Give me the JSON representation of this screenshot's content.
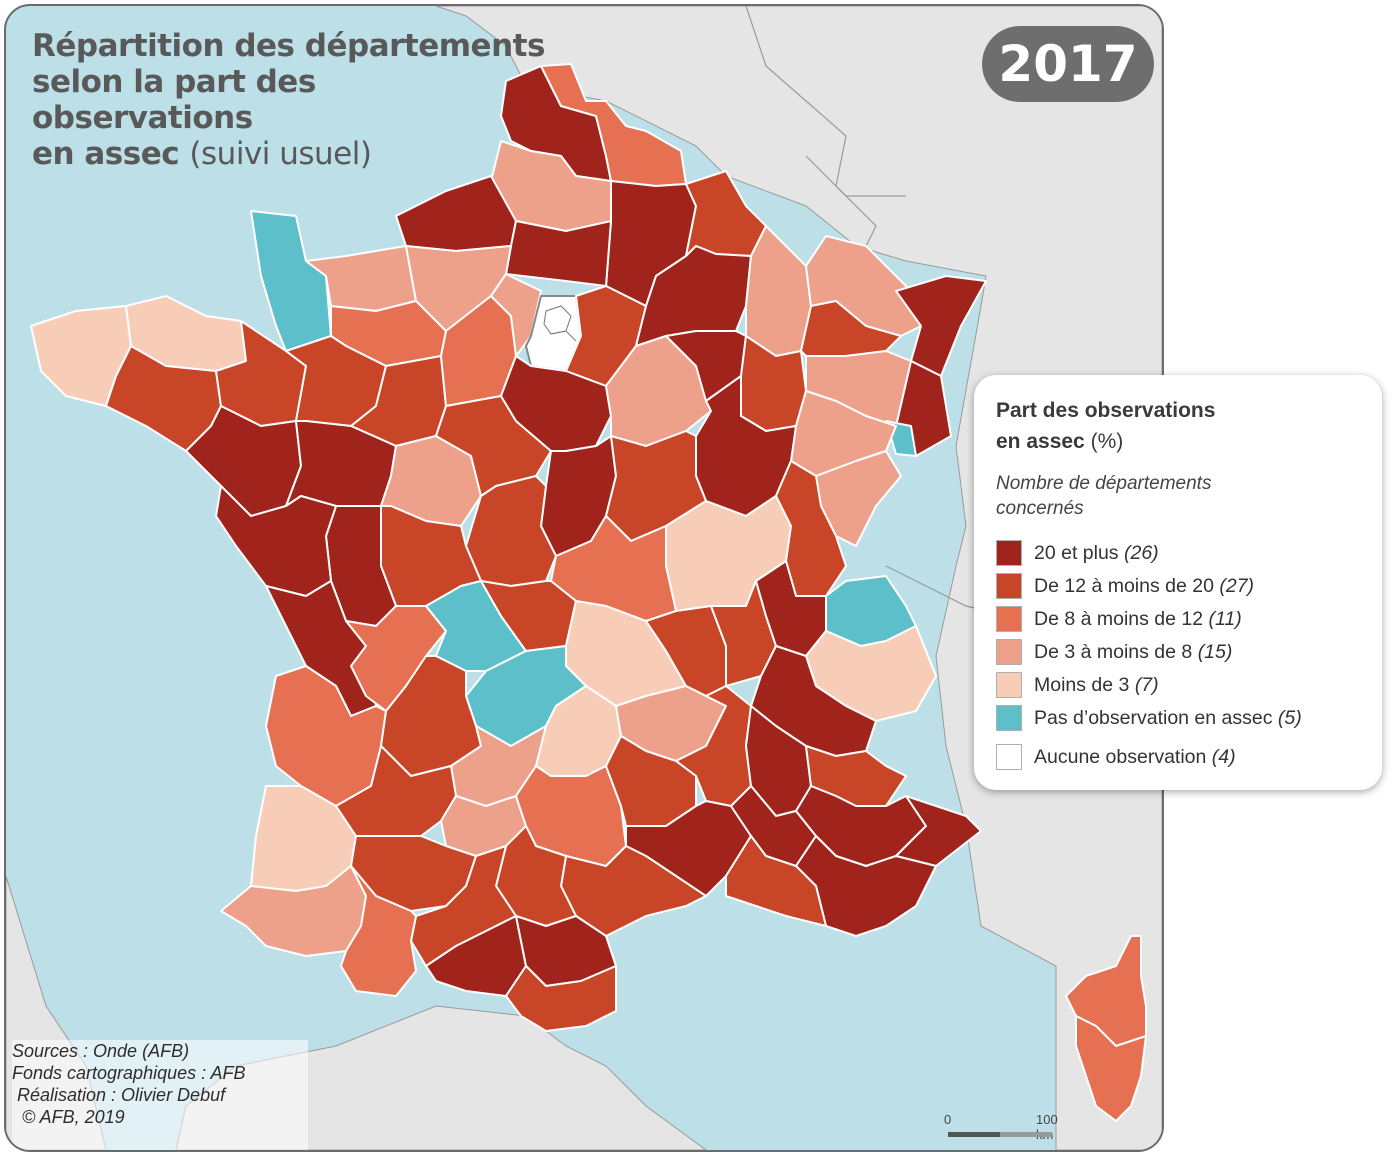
{
  "title": {
    "line1": "Répartition des départements",
    "line2": "selon la part des",
    "line3": "observations",
    "line4_bold": "en assec",
    "line4_light": "(suivi usuel)"
  },
  "year": "2017",
  "legend": {
    "title_bold": "Part des observations",
    "title_bold2": "en assec",
    "title_unit": "(%)",
    "subtitle": "Nombre de départements concernés",
    "classes": [
      {
        "label": "20 et plus",
        "count": "(26)",
        "color": "#a0241b"
      },
      {
        "label": "De 12 à moins de 20",
        "count": "(27)",
        "color": "#c84527"
      },
      {
        "label": "De 8 à moins de 12",
        "count": "(11)",
        "color": "#e57052"
      },
      {
        "label": "De 3 à moins de 8",
        "count": "(15)",
        "color": "#eda08a"
      },
      {
        "label": "Moins de 3",
        "count": "(7)",
        "color": "#f8cdb8"
      },
      {
        "label": "Pas d’observation en assec",
        "count": "(5)",
        "color": "#5cbfca"
      },
      {
        "label": "Aucune observation",
        "count": "(4)",
        "color": "#ffffff"
      }
    ]
  },
  "credits": {
    "sources": "Sources : Onde (AFB)",
    "fonds": "Fonds cartographiques : AFB",
    "realisation": " Réalisation : Olivier Debuf",
    "copyright": "  © AFB, 2019"
  },
  "scale": {
    "start": "0",
    "end": "100 km"
  },
  "colors": {
    "sea": "#bde0e8",
    "land_outside": "#e5e5e5",
    "border": "#ffffff"
  }
}
